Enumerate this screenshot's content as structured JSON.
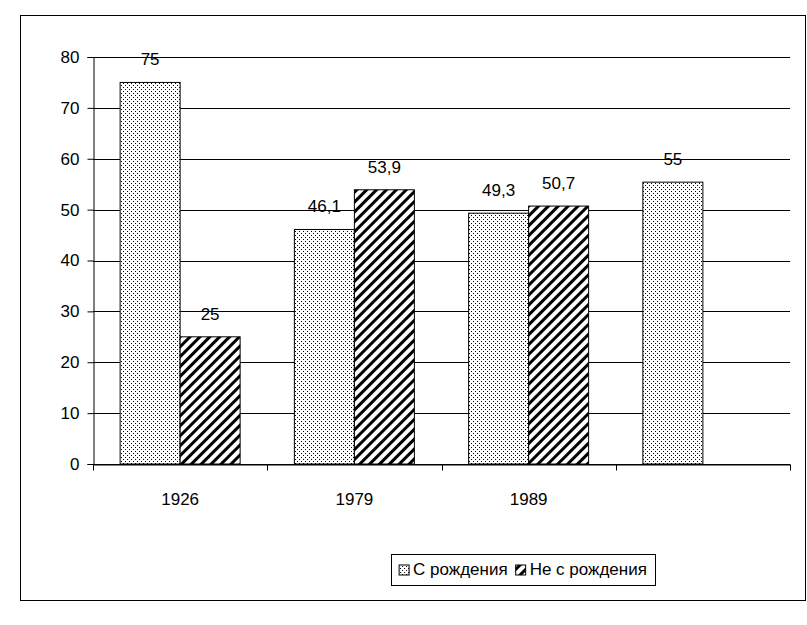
{
  "chart_data": {
    "type": "bar",
    "categories": [
      "1926",
      "1979",
      "1989",
      null
    ],
    "series": [
      {
        "name": "С рождения",
        "color": "#000000",
        "values": [
          75,
          46.1,
          49.3,
          55.4
        ],
        "value_labels": [
          "75",
          "46,1",
          "49,3",
          "55"
        ]
      },
      {
        "name": "Не с рождения",
        "color": "#000000",
        "values": [
          25,
          53.9,
          50.7,
          null
        ],
        "value_labels": [
          "25",
          "53,9",
          "50,7",
          null
        ]
      }
    ],
    "ylim": [
      0,
      80
    ],
    "yticks": [
      0,
      10,
      20,
      30,
      40,
      50,
      60,
      70,
      80
    ],
    "grid": true,
    "data_labels": true,
    "legend": "bottom"
  }
}
